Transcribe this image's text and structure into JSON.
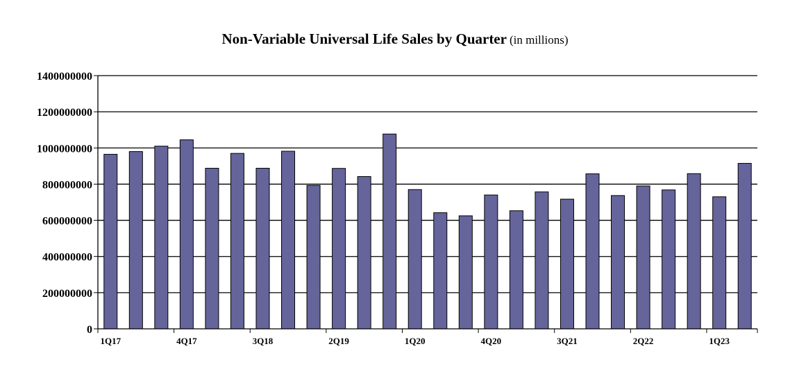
{
  "chart_data": {
    "type": "bar",
    "title": "Non-Variable Universal Life Sales by Quarter",
    "subtitle": "(in millions)",
    "xlabel": "",
    "ylabel": "",
    "ylim": [
      0,
      1400000000
    ],
    "yticks": [
      0,
      200000000,
      400000000,
      600000000,
      800000000,
      1000000000,
      1200000000,
      1400000000
    ],
    "ytick_labels": [
      "0",
      "200000000",
      "400000000",
      "600000000",
      "800000000",
      "1000000000",
      "1200000000",
      "1400000000"
    ],
    "grid": true,
    "bar_color": "#65659b",
    "categories": [
      "1Q17",
      "2Q17",
      "3Q17",
      "4Q17",
      "1Q18",
      "2Q18",
      "3Q18",
      "4Q18",
      "1Q19",
      "2Q19",
      "3Q19",
      "4Q19",
      "1Q20",
      "2Q20",
      "3Q20",
      "4Q20",
      "1Q21",
      "2Q21",
      "3Q21",
      "4Q21",
      "1Q22",
      "2Q22",
      "3Q22",
      "4Q22",
      "1Q23",
      "2Q23"
    ],
    "tick_labels": [
      "1Q17",
      "",
      "",
      "4Q17",
      "",
      "",
      "3Q18",
      "",
      "",
      "2Q19",
      "",
      "",
      "1Q20",
      "",
      "",
      "4Q20",
      "",
      "",
      "3Q21",
      "",
      "",
      "2Q22",
      "",
      "",
      "1Q23",
      ""
    ],
    "values": [
      965000000,
      980000000,
      1010000000,
      1045000000,
      888000000,
      970000000,
      888000000,
      982000000,
      793000000,
      887000000,
      842000000,
      1077000000,
      770000000,
      642000000,
      625000000,
      740000000,
      653000000,
      757000000,
      717000000,
      857000000,
      737000000,
      790000000,
      768000000,
      858000000,
      730000000,
      915000000
    ]
  }
}
